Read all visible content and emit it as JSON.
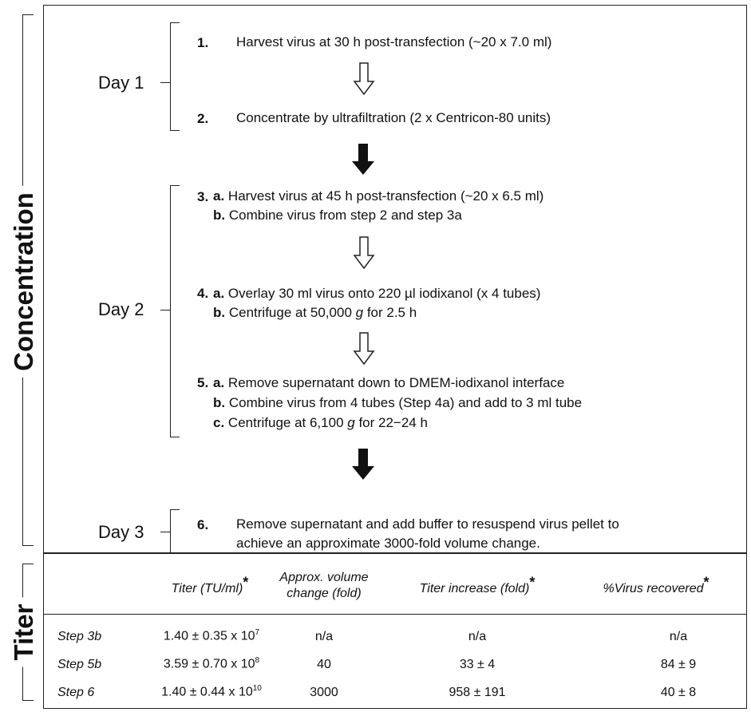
{
  "section_labels": {
    "concentration": "Concentration",
    "titer": "Titer"
  },
  "days": {
    "day1": "Day 1",
    "day2": "Day 2",
    "day3": "Day 3"
  },
  "steps": {
    "s1": {
      "num": "1.",
      "text": "Harvest virus at 30 h post-transfection (~20 x 7.0 ml)"
    },
    "s2": {
      "num": "2.",
      "text": "Concentrate by ultrafiltration (2 x Centricon-80 units)"
    },
    "s3": {
      "num": "3.",
      "a_label": "a.",
      "a": "Harvest virus at 45 h post-transfection (~20 x 6.5 ml)",
      "b_label": "b.",
      "b": "Combine virus from step 2 and step 3a"
    },
    "s4": {
      "num": "4.",
      "a_label": "a.",
      "a": "Overlay 30 ml virus onto 220 µl iodixanol (x 4 tubes)",
      "b_label": "b.",
      "b_pre": "Centrifuge at 50,000 ",
      "b_g": "g",
      "b_post": " for 2.5 h"
    },
    "s5": {
      "num": "5.",
      "a_label": "a.",
      "a": "Remove supernatant down to DMEM-iodixanol interface",
      "b_label": "b.",
      "b": "Combine virus from 4 tubes (Step 4a) and add to 3 ml tube",
      "c_label": "c.",
      "c_pre": "Centrifuge at 6,100 ",
      "c_g": "g",
      "c_post": " for 22−24 h"
    },
    "s6": {
      "num": "6.",
      "line1": "Remove supernatant and add buffer to resuspend virus pellet to",
      "line2": "achieve an approximate 3000-fold volume change."
    }
  },
  "table": {
    "headers": {
      "titer": "Titer (TU/ml)",
      "volume_l1": "Approx. volume",
      "volume_l2": "change (fold)",
      "increase": "Titer increase (fold)",
      "recovered": "%Virus recovered",
      "asterisk": "*"
    },
    "rows": [
      {
        "label": "Step 3b",
        "titer": "1.40 ± 0.35 x 10",
        "titer_exp": "7",
        "volume": "n/a",
        "increase": "n/a",
        "recovered": "n/a"
      },
      {
        "label": "Step 5b",
        "titer": "3.59 ± 0.70 x 10",
        "titer_exp": "8",
        "volume": "40",
        "increase": "33 ± 4",
        "recovered": "84 ± 9"
      },
      {
        "label": "Step 6",
        "titer": "1.40 ± 0.44 x 10",
        "titer_exp": "10",
        "volume": "3000",
        "increase": "958 ± 191",
        "recovered": "40 ± 8"
      }
    ]
  },
  "arrows": {
    "open": "hollow-down-arrow",
    "solid": "solid-down-arrow"
  }
}
